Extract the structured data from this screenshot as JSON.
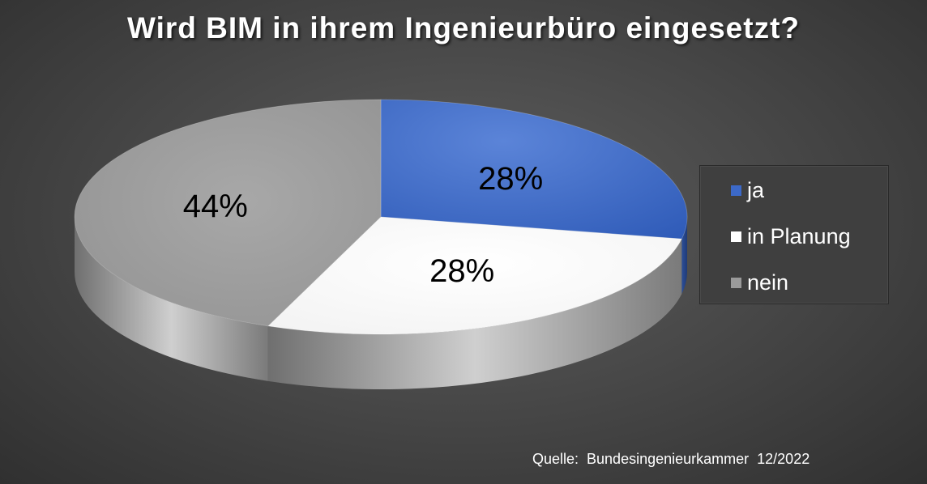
{
  "chart_data": {
    "type": "pie",
    "title": "Wird BIM in ihrem Ingenieurbüro eingesetzt?",
    "slices": [
      {
        "label": "ja",
        "value": 28,
        "display": "28%",
        "color": "#3c69c8"
      },
      {
        "label": "in Planung",
        "value": 28,
        "display": "28%",
        "color": "#ffffff"
      },
      {
        "label": "nein",
        "value": 44,
        "display": "44%",
        "color": "#9a9a9a"
      }
    ],
    "legend_position": "right",
    "source": "Quelle:  Bundesingenieurkammer  12/2022"
  }
}
